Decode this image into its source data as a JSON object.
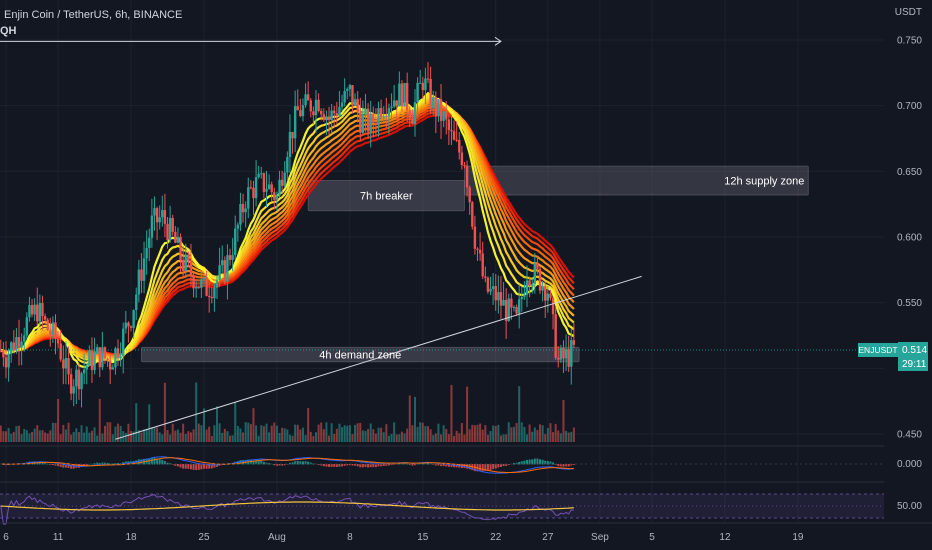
{
  "header": {
    "symbol_title": "Enjin Coin / TetherUS, 6h, BINANCE",
    "currency": "USDT",
    "partial_label": "QH"
  },
  "colors": {
    "background": "#131722",
    "bull": "#26a69a",
    "bear": "#ef5350",
    "zone": "#4a4e5a",
    "ribbon": [
      "#ffff33",
      "#ffe92a",
      "#ffd321",
      "#ffbb1a",
      "#ffa014",
      "#ff860f",
      "#ff6a0b",
      "#ff4a08",
      "#f52a06",
      "#e01005"
    ],
    "macd_line": "#2962ff",
    "signal_line": "#ff6d00",
    "rsi_line": "#f5c542",
    "rsi_band": "#7e57c2",
    "badge": "#26a69a"
  },
  "price_badge": {
    "symbol": "ENJUSDT",
    "price": "0.514",
    "countdown": "29:11"
  },
  "chart_data": [
    {
      "type": "candlestick",
      "title": "Enjin Coin / TetherUS, 6h, BINANCE",
      "interval": "6h",
      "ylabel": "USDT",
      "ylim": [
        0.44,
        0.76
      ],
      "y_ticks": [
        "0.750",
        "0.700",
        "0.650",
        "0.600",
        "0.550",
        "0.450"
      ],
      "x_ticks": [
        {
          "day": 0,
          "label": "6"
        },
        {
          "day": 5,
          "label": "11"
        },
        {
          "day": 12,
          "label": "18"
        },
        {
          "day": 19,
          "label": "25"
        },
        {
          "day": 26,
          "label": "Aug"
        },
        {
          "day": 33,
          "label": "8"
        },
        {
          "day": 40,
          "label": "15"
        },
        {
          "day": 47,
          "label": "22"
        },
        {
          "day": 52,
          "label": "27"
        },
        {
          "day": 57,
          "label": "Sep"
        },
        {
          "day": 62,
          "label": "5"
        },
        {
          "day": 69,
          "label": "12"
        },
        {
          "day": 76,
          "label": "19"
        }
      ],
      "close_path": [
        [
          0,
          0.51
        ],
        [
          2,
          0.535
        ],
        [
          3,
          0.545
        ],
        [
          4,
          0.53
        ],
        [
          5,
          0.52
        ],
        [
          6,
          0.49
        ],
        [
          7,
          0.495
        ],
        [
          8,
          0.505
        ],
        [
          9,
          0.51
        ],
        [
          10,
          0.505
        ],
        [
          11,
          0.52
        ],
        [
          12,
          0.54
        ],
        [
          13,
          0.575
        ],
        [
          14,
          0.61
        ],
        [
          15,
          0.615
        ],
        [
          16,
          0.6
        ],
        [
          17,
          0.58
        ],
        [
          18,
          0.57
        ],
        [
          19,
          0.56
        ],
        [
          20,
          0.565
        ],
        [
          21,
          0.575
        ],
        [
          22,
          0.6
        ],
        [
          23,
          0.63
        ],
        [
          24,
          0.64
        ],
        [
          25,
          0.64
        ],
        [
          26,
          0.63
        ],
        [
          27,
          0.67
        ],
        [
          28,
          0.695
        ],
        [
          29,
          0.7
        ],
        [
          30,
          0.705
        ],
        [
          31,
          0.69
        ],
        [
          32,
          0.7
        ],
        [
          33,
          0.71
        ],
        [
          34,
          0.69
        ],
        [
          35,
          0.685
        ],
        [
          36,
          0.7
        ],
        [
          37,
          0.705
        ],
        [
          38,
          0.71
        ],
        [
          39,
          0.695
        ],
        [
          40,
          0.72
        ],
        [
          41,
          0.7
        ],
        [
          42,
          0.69
        ],
        [
          43,
          0.67
        ],
        [
          44,
          0.66
        ],
        [
          45,
          0.6
        ],
        [
          46,
          0.56
        ],
        [
          47,
          0.555
        ],
        [
          48,
          0.545
        ],
        [
          49,
          0.535
        ],
        [
          50,
          0.575
        ],
        [
          51,
          0.57
        ],
        [
          52,
          0.56
        ],
        [
          52.6,
          0.525
        ],
        [
          53,
          0.505
        ],
        [
          54,
          0.51
        ],
        [
          54.5,
          0.514
        ]
      ],
      "annotations": [
        {
          "label": "12h supply zone",
          "y_range": [
            0.632,
            0.654
          ],
          "x_range": [
            44,
            77
          ]
        },
        {
          "label": "7h breaker",
          "y_range": [
            0.62,
            0.643
          ],
          "x_range": [
            29,
            44
          ]
        },
        {
          "label": "4h demand zone",
          "y_range": [
            0.505,
            0.516
          ],
          "x_range": [
            13,
            55
          ]
        }
      ],
      "trendline": {
        "from": [
          10.5,
          0.446
        ],
        "to": [
          61,
          0.57
        ]
      },
      "top_arrow": {
        "from": [
          -2,
          0.749
        ],
        "to": [
          47.5,
          0.749
        ]
      },
      "current_price": 0.514,
      "ribbon_lengths": [
        3,
        4,
        5,
        6,
        7,
        8,
        9,
        10,
        11,
        12
      ]
    },
    {
      "type": "macd",
      "y_ticks": [
        "0.000"
      ],
      "ylim": [
        -0.02,
        0.02
      ]
    },
    {
      "type": "rsi",
      "y_ticks": [
        "50.00"
      ],
      "ylim": [
        20,
        80
      ],
      "band": [
        30,
        70
      ]
    }
  ]
}
